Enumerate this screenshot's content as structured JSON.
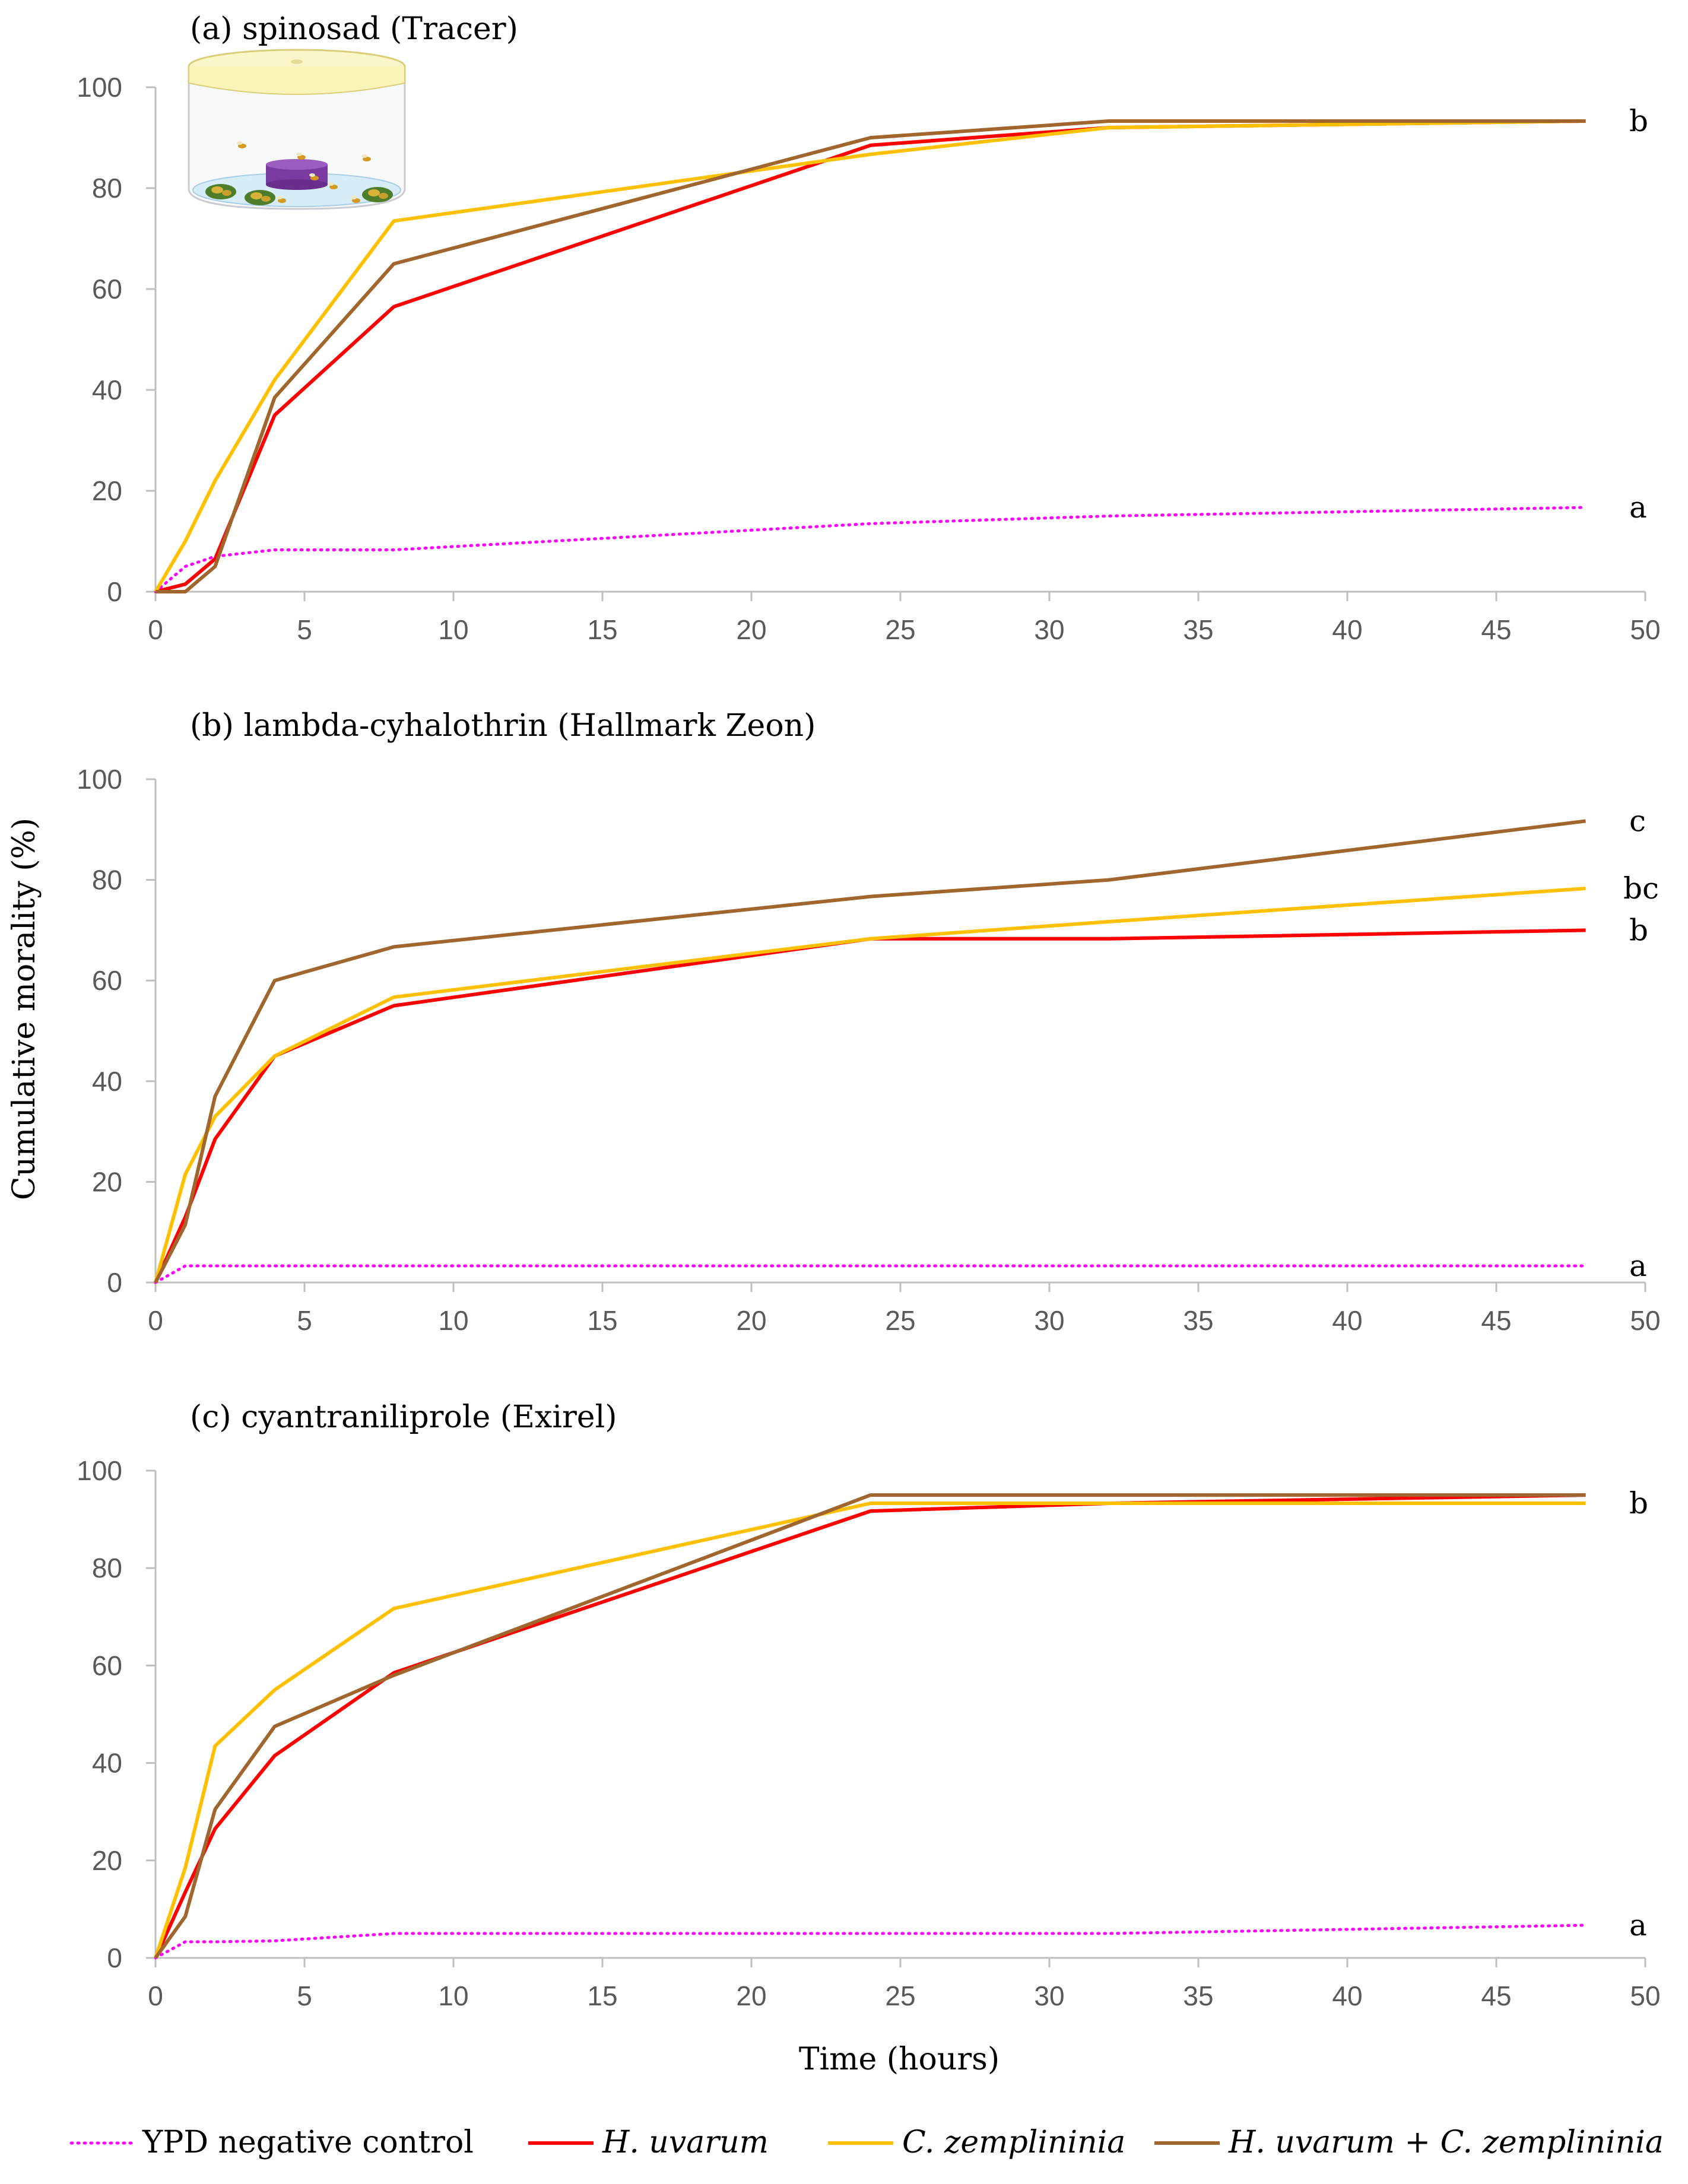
{
  "figure": {
    "y_axis_label": "Cumulative morality (%)",
    "x_axis_label": "Time (hours)"
  },
  "colors": {
    "control": "#ff00ff",
    "hu": "#ff0000",
    "cz": "#ffc000",
    "combo": "#a0662e",
    "axis": "#bfbfbf",
    "tick_text": "#595959"
  },
  "legend": [
    {
      "key": "control",
      "label": "YPD negative control",
      "italic": false,
      "dashed": true
    },
    {
      "key": "hu",
      "label": "H. uvarum",
      "italic": true,
      "dashed": false
    },
    {
      "key": "cz",
      "label": "C. zemplininia",
      "italic": true,
      "dashed": false
    },
    {
      "key": "combo",
      "label_a": "H. uvarum",
      "label_plus": " + ",
      "label_b": "C. zemplininia",
      "dashed": false
    }
  ],
  "chart_data": [
    {
      "type": "line",
      "title": "(a) spinosad  (Tracer)",
      "xlabel": "",
      "ylabel": "Cumulative morality (%)",
      "xlim": [
        0,
        50
      ],
      "ylim": [
        0,
        100
      ],
      "x_ticks": [
        0,
        5,
        10,
        15,
        20,
        25,
        30,
        35,
        40,
        45,
        50
      ],
      "y_ticks": [
        0,
        20,
        40,
        60,
        80,
        100
      ],
      "inset_icon": "petri-dish-with-flies-icon",
      "series": [
        {
          "key": "control",
          "name": "YPD negative control",
          "x": [
            0,
            1,
            2,
            4,
            8,
            24,
            32,
            48
          ],
          "y": [
            0,
            5,
            7,
            8.3,
            8.3,
            13.5,
            15,
            16.7
          ],
          "end_label": "a"
        },
        {
          "key": "hu",
          "name": "H. uvarum",
          "x": [
            0,
            1,
            2,
            4,
            8,
            24,
            32,
            48
          ],
          "y": [
            0,
            1.5,
            6.5,
            35,
            56.5,
            88.5,
            92,
            93.3
          ],
          "end_label": ""
        },
        {
          "key": "cz",
          "name": "C. zemplininia",
          "x": [
            0,
            1,
            2,
            4,
            8,
            24,
            32,
            48
          ],
          "y": [
            0,
            10,
            22,
            42,
            73.5,
            86.7,
            92,
            93.3
          ],
          "end_label": "b"
        },
        {
          "key": "combo",
          "name": "H. uvarum + C. zemplininia",
          "x": [
            0,
            1,
            2,
            4,
            8,
            24,
            32,
            48
          ],
          "y": [
            0,
            0,
            5,
            38.5,
            65,
            90,
            93.3,
            93.3
          ],
          "end_label": ""
        }
      ]
    },
    {
      "type": "line",
      "title": "(b) lambda-cyhalothrin  (Hallmark Zeon)",
      "xlabel": "",
      "ylabel": "Cumulative morality (%)",
      "xlim": [
        0,
        50
      ],
      "ylim": [
        0,
        100
      ],
      "x_ticks": [
        0,
        5,
        10,
        15,
        20,
        25,
        30,
        35,
        40,
        45,
        50
      ],
      "y_ticks": [
        0,
        20,
        40,
        60,
        80,
        100
      ],
      "series": [
        {
          "key": "control",
          "name": "YPD negative control",
          "x": [
            0,
            1,
            2,
            4,
            8,
            24,
            32,
            48
          ],
          "y": [
            0,
            3.3,
            3.3,
            3.3,
            3.3,
            3.3,
            3.3,
            3.3
          ],
          "end_label": "a"
        },
        {
          "key": "hu",
          "name": "H. uvarum",
          "x": [
            0,
            1,
            2,
            4,
            8,
            24,
            32,
            48
          ],
          "y": [
            0,
            13,
            28.5,
            45,
            55,
            68.3,
            68.3,
            70
          ],
          "end_label": "b"
        },
        {
          "key": "cz",
          "name": "C. zemplininia",
          "x": [
            0,
            1,
            2,
            4,
            8,
            24,
            32,
            48
          ],
          "y": [
            0,
            21.5,
            33,
            45,
            56.7,
            68.3,
            71.7,
            78.3
          ],
          "end_label": "bc"
        },
        {
          "key": "combo",
          "name": "H. uvarum + C. zemplininia",
          "x": [
            0,
            1,
            2,
            4,
            8,
            24,
            32,
            48
          ],
          "y": [
            0,
            11.5,
            37,
            60,
            66.7,
            76.7,
            80,
            91.7
          ],
          "end_label": "c"
        }
      ]
    },
    {
      "type": "line",
      "title": "(c) cyantraniliprole  (Exirel)",
      "xlabel": "Time (hours)",
      "ylabel": "Cumulative morality (%)",
      "xlim": [
        0,
        50
      ],
      "ylim": [
        0,
        100
      ],
      "x_ticks": [
        0,
        5,
        10,
        15,
        20,
        25,
        30,
        35,
        40,
        45,
        50
      ],
      "y_ticks": [
        0,
        20,
        40,
        60,
        80,
        100
      ],
      "series": [
        {
          "key": "control",
          "name": "YPD negative control",
          "x": [
            0,
            1,
            2,
            4,
            8,
            24,
            32,
            48
          ],
          "y": [
            0,
            3.3,
            3.3,
            3.5,
            5,
            5,
            5,
            6.7
          ],
          "end_label": "a"
        },
        {
          "key": "hu",
          "name": "H. uvarum",
          "x": [
            0,
            1,
            2,
            4,
            8,
            24,
            32,
            48
          ],
          "y": [
            0,
            13.5,
            26.5,
            41.5,
            58.5,
            91.7,
            93.3,
            95
          ],
          "end_label": ""
        },
        {
          "key": "cz",
          "name": "C. zemplininia",
          "x": [
            0,
            1,
            2,
            4,
            8,
            24,
            32,
            48
          ],
          "y": [
            0,
            18.5,
            43.5,
            55,
            71.7,
            93.3,
            93.3,
            93.3
          ],
          "end_label": "b"
        },
        {
          "key": "combo",
          "name": "H. uvarum + C. zemplininia",
          "x": [
            0,
            1,
            2,
            4,
            8,
            24,
            32,
            48
          ],
          "y": [
            0,
            8.5,
            30.5,
            47.5,
            58,
            95,
            95,
            95
          ],
          "end_label": ""
        }
      ]
    }
  ]
}
